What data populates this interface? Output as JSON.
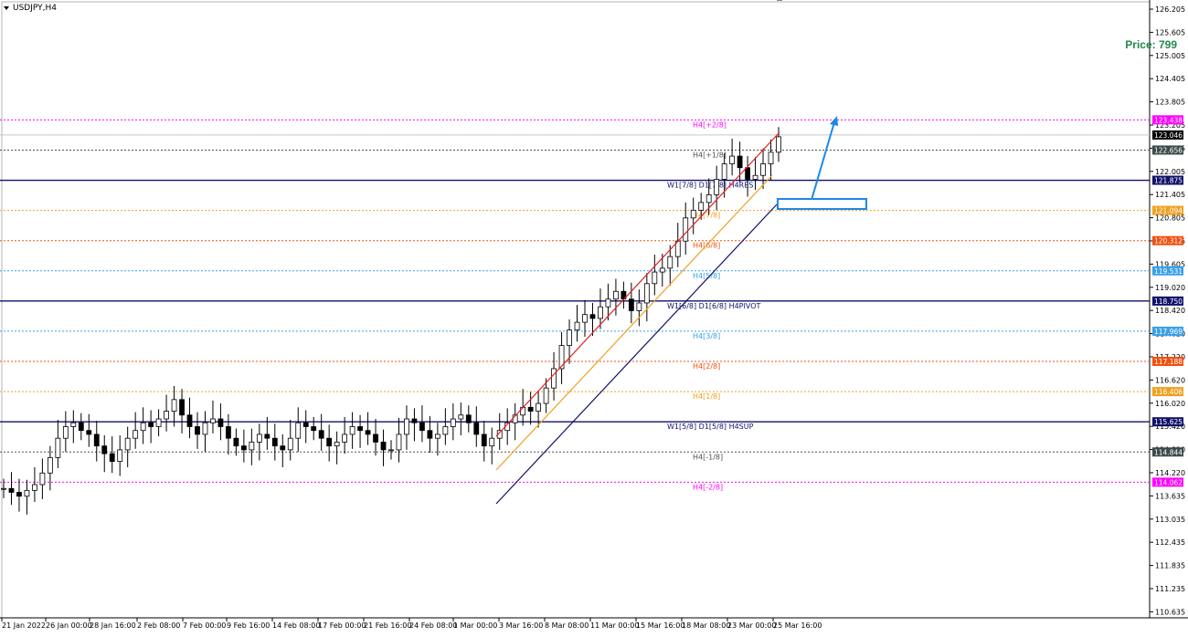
{
  "window": {
    "title": "USDJPY,H4"
  },
  "price_label": "Price: 799",
  "colors": {
    "up_channel_top": "#e02020",
    "up_channel_mid": "#f0a020",
    "up_channel_bottom": "#10106a",
    "arrow": "#1e88e5",
    "box": "#1e88e5",
    "candle": "#000000"
  },
  "chart_data": {
    "type": "candlestick",
    "symbol": "USDJPY",
    "timeframe": "H4",
    "ylim": [
      110.6,
      126.35
    ],
    "y_ticks": [
      "126.205",
      "125.605",
      "125.005",
      "124.405",
      "123.805",
      "123.205",
      "122.605",
      "122.005",
      "121.405",
      "120.805",
      "120.205",
      "119.605",
      "119.020",
      "118.420",
      "117.820",
      "117.220",
      "116.620",
      "116.020",
      "115.420",
      "114.820",
      "114.220",
      "113.635",
      "113.035",
      "112.435",
      "111.835",
      "111.235",
      "110.635"
    ],
    "x_ticks": [
      "21 Jan 2022",
      "26 Jan 00:00",
      "28 Jan 16:00",
      "2 Feb 08:00",
      "7 Feb 00:00",
      "9 Feb 16:00",
      "14 Feb 08:00",
      "17 Feb 00:00",
      "21 Feb 16:00",
      "24 Feb 08:00",
      "1 Mar 00:00",
      "3 Mar 16:00",
      "8 Mar 08:00",
      "11 Mar 00:00",
      "15 Mar 16:00",
      "18 Mar 08:00",
      "23 Mar 00:00",
      "25 Mar 16:00"
    ],
    "close_series": [
      113.9,
      113.8,
      113.7,
      113.85,
      114.0,
      114.3,
      114.7,
      115.2,
      115.5,
      115.6,
      115.4,
      115.3,
      115.0,
      114.8,
      114.6,
      114.9,
      115.2,
      115.4,
      115.6,
      115.5,
      115.7,
      115.9,
      116.2,
      115.8,
      115.5,
      115.3,
      115.6,
      115.7,
      115.5,
      115.2,
      115.0,
      114.9,
      115.1,
      115.3,
      115.2,
      115.0,
      114.9,
      115.2,
      115.6,
      115.5,
      115.4,
      115.2,
      115.0,
      115.1,
      115.3,
      115.5,
      115.4,
      115.3,
      115.1,
      114.9,
      114.9,
      115.3,
      115.7,
      115.6,
      115.4,
      115.2,
      115.3,
      115.5,
      115.7,
      115.8,
      115.6,
      115.3,
      115.0,
      115.2,
      115.4,
      115.6,
      115.8,
      116.0,
      115.9,
      116.1,
      116.5,
      117.0,
      117.6,
      118.0,
      118.2,
      118.4,
      118.3,
      118.6,
      118.8,
      119.0,
      118.8,
      118.5,
      118.7,
      119.2,
      119.5,
      119.6,
      119.9,
      120.3,
      120.9,
      121.1,
      121.3,
      121.5,
      121.9,
      122.3,
      122.5,
      122.2,
      121.9,
      122.0,
      122.3,
      122.6,
      123.0
    ],
    "levels": [
      {
        "label": "H4[+2/8]",
        "price": "123.438",
        "color": "#ff00ff",
        "style": "dot",
        "tagbg": "#ff00ff"
      },
      {
        "label": "",
        "price": "123.046",
        "color": "#c8c8c8",
        "style": "solid",
        "tagbg": "#000000"
      },
      {
        "label": "H4[+1/8]",
        "price": "122.656",
        "color": "#505050",
        "style": "dot",
        "tagbg": "#3a4a4a"
      },
      {
        "label": "W1[7/8] D1[7/8] H4RES",
        "price": "121.875",
        "color": "#10106a",
        "style": "solid",
        "tagbg": "#10106a"
      },
      {
        "label": "H4[7/8]",
        "price": "121.094",
        "color": "#f0a020",
        "style": "dot",
        "tagbg": "#f0a020"
      },
      {
        "label": "H4[6/8]",
        "price": "120.312",
        "color": "#f05010",
        "style": "dot",
        "tagbg": "#f05010"
      },
      {
        "label": "H4[5/8]",
        "price": "119.531",
        "color": "#3aa0e8",
        "style": "dot",
        "tagbg": "#3aa0e8"
      },
      {
        "label": "W1[6/8] D1[6/8] H4PIVOT",
        "price": "118.750",
        "color": "#10106a",
        "style": "solid",
        "tagbg": "#10106a"
      },
      {
        "label": "H4[3/8]",
        "price": "117.969",
        "color": "#3aa0e8",
        "style": "dot",
        "tagbg": "#3aa0e8"
      },
      {
        "label": "H4[2/8]",
        "price": "117.188",
        "color": "#f05010",
        "style": "dot",
        "tagbg": "#f05010"
      },
      {
        "label": "H4[1/8]",
        "price": "116.406",
        "color": "#f0a020",
        "style": "dot",
        "tagbg": "#f0a020"
      },
      {
        "label": "W1[5/8] D1[5/8] H4SUP",
        "price": "115.625",
        "color": "#10106a",
        "style": "solid",
        "tagbg": "#10106a"
      },
      {
        "label": "H4[-1/8]",
        "price": "114.844",
        "color": "#505050",
        "style": "dot",
        "tagbg": "#3a4a4a"
      },
      {
        "label": "H4[-2/8]",
        "price": "114.062",
        "color": "#ff00ff",
        "style": "dot",
        "tagbg": "#ff00ff"
      }
    ]
  }
}
